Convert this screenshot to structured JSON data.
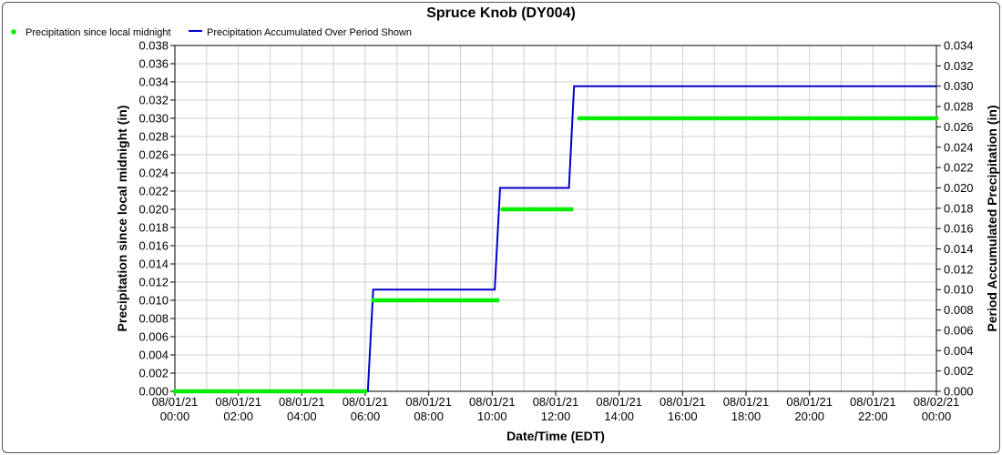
{
  "chart_data": {
    "type": "line",
    "title": "Spruce Knob (DY004)",
    "xlabel": "Date/Time (EDT)",
    "ylabel_left": "Precipitation since local midnight (in)",
    "ylabel_right": "Period Accumulated Precipitation (in)",
    "ylim_left": [
      0,
      0.038
    ],
    "ylim_right": [
      0,
      0.034
    ],
    "x_tick_labels": [
      [
        "08/01/21",
        "00:00"
      ],
      [
        "08/01/21",
        "02:00"
      ],
      [
        "08/01/21",
        "04:00"
      ],
      [
        "08/01/21",
        "06:00"
      ],
      [
        "08/01/21",
        "08:00"
      ],
      [
        "08/01/21",
        "10:00"
      ],
      [
        "08/01/21",
        "12:00"
      ],
      [
        "08/01/21",
        "14:00"
      ],
      [
        "08/01/21",
        "16:00"
      ],
      [
        "08/01/21",
        "18:00"
      ],
      [
        "08/01/21",
        "20:00"
      ],
      [
        "08/01/21",
        "22:00"
      ],
      [
        "08/02/21",
        "00:00"
      ]
    ],
    "y_ticks_left": [
      "0.000",
      "0.002",
      "0.004",
      "0.006",
      "0.008",
      "0.010",
      "0.012",
      "0.014",
      "0.016",
      "0.018",
      "0.020",
      "0.022",
      "0.024",
      "0.026",
      "0.028",
      "0.030",
      "0.032",
      "0.034",
      "0.036",
      "0.038"
    ],
    "y_ticks_right": [
      "0.000",
      "0.002",
      "0.004",
      "0.006",
      "0.008",
      "0.010",
      "0.012",
      "0.014",
      "0.016",
      "0.018",
      "0.020",
      "0.022",
      "0.024",
      "0.026",
      "0.028",
      "0.030",
      "0.032",
      "0.034"
    ],
    "grid": true,
    "legend_position": "top-left",
    "series": [
      {
        "name": "Precipitation since local midnight",
        "axis": "left",
        "style": "dots",
        "color": "#00ee00",
        "segments": [
          {
            "from_hour": 0.0,
            "to_hour": 6.0,
            "value": 0.0
          },
          {
            "from_hour": 6.25,
            "to_hour": 10.17,
            "value": 0.01
          },
          {
            "from_hour": 10.33,
            "to_hour": 12.5,
            "value": 0.02
          },
          {
            "from_hour": 12.75,
            "to_hour": 24.0,
            "value": 0.03
          }
        ]
      },
      {
        "name": "Precipitation Accumulated Over Period Shown",
        "axis": "right",
        "style": "line",
        "color": "#0000cc",
        "points": [
          [
            0.0,
            0.0
          ],
          [
            6.08,
            0.0
          ],
          [
            6.25,
            0.01
          ],
          [
            10.08,
            0.01
          ],
          [
            10.25,
            0.02
          ],
          [
            12.42,
            0.02
          ],
          [
            12.58,
            0.03
          ],
          [
            24.0,
            0.03
          ]
        ]
      }
    ]
  }
}
